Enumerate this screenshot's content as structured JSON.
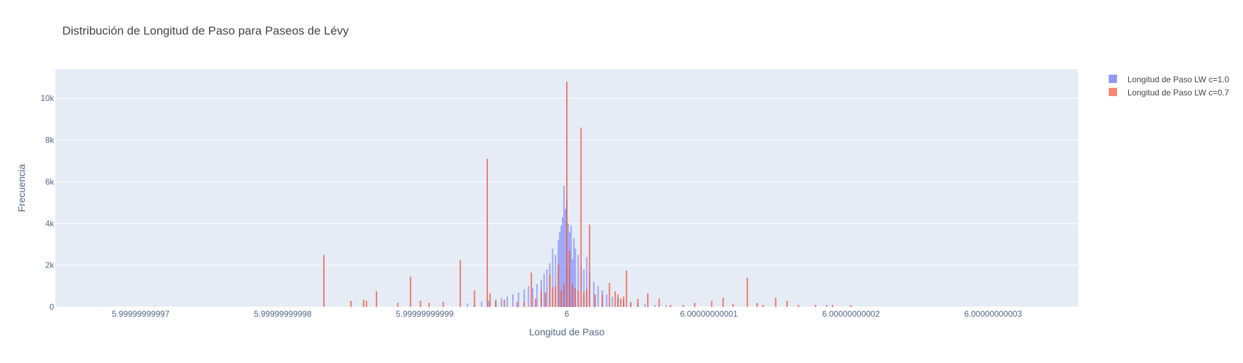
{
  "chart_data": {
    "type": "histogram",
    "title": "Distribución de Longitud de Paso para Paseos de Lévy",
    "xlabel": "Longitud de Paso",
    "ylabel": "Frecuencia",
    "x_ticks": [
      {
        "value": -3,
        "label": "5.99999999997"
      },
      {
        "value": -2,
        "label": "5.99999999998"
      },
      {
        "value": -1,
        "label": "5.99999999999"
      },
      {
        "value": 0,
        "label": "6"
      },
      {
        "value": 1,
        "label": "6.00000000001"
      },
      {
        "value": 2,
        "label": "6.00000000002"
      },
      {
        "value": 3,
        "label": "6.00000000003"
      }
    ],
    "x_unit_note": "x values are offsets from 6 in units of 1e-11",
    "xlim": [
      -3.6,
      3.6
    ],
    "y_ticks": [
      {
        "value": 0,
        "label": "0"
      },
      {
        "value": 2000,
        "label": "2k"
      },
      {
        "value": 4000,
        "label": "4k"
      },
      {
        "value": 6000,
        "label": "6k"
      },
      {
        "value": 8000,
        "label": "8k"
      },
      {
        "value": 10000,
        "label": "10k"
      }
    ],
    "ylim": [
      0,
      11400
    ],
    "grid": true,
    "legend_position": "top-right",
    "colors": {
      "plot_bg": "#E5ECF6",
      "grid": "#ffffff",
      "series1": "#636EFA",
      "series2": "#EF553B"
    },
    "series": [
      {
        "name": "Longitud de Paso LW c=1.0",
        "color": "#636EFA",
        "opacity": 0.55,
        "x": [
          -0.7,
          -0.65,
          -0.6,
          -0.55,
          -0.5,
          -0.46,
          -0.42,
          -0.38,
          -0.34,
          -0.3,
          -0.27,
          -0.24,
          -0.21,
          -0.18,
          -0.16,
          -0.14,
          -0.12,
          -0.1,
          -0.08,
          -0.06,
          -0.05,
          -0.04,
          -0.03,
          -0.02,
          -0.01,
          0.0,
          0.01,
          0.02,
          0.03,
          0.04,
          0.05,
          0.06,
          0.08,
          0.1,
          0.12,
          0.14,
          0.16,
          0.19,
          0.22,
          0.25,
          0.28,
          0.32,
          0.36,
          0.4,
          0.45,
          0.5,
          0.55,
          0.62,
          0.7
        ],
        "y": [
          150,
          200,
          250,
          300,
          350,
          420,
          500,
          600,
          700,
          850,
          1000,
          900,
          1100,
          1300,
          1600,
          1800,
          2100,
          2800,
          2500,
          3200,
          3600,
          3900,
          4300,
          5800,
          4700,
          5200,
          4000,
          3600,
          3900,
          2300,
          3300,
          2800,
          2500,
          2000,
          1800,
          2400,
          1600,
          1200,
          1000,
          800,
          600,
          500,
          400,
          350,
          250,
          200,
          150,
          100,
          80
        ]
      },
      {
        "name": "Longitud de Paso LW c=0.7",
        "color": "#EF553B",
        "opacity": 0.75,
        "x": [
          -3.3,
          -2.9,
          -1.71,
          -1.52,
          -1.43,
          -1.41,
          -1.34,
          -1.19,
          -1.1,
          -1.03,
          -0.97,
          -0.87,
          -0.75,
          -0.65,
          -0.56,
          -0.54,
          -0.5,
          -0.44,
          -0.35,
          -0.3,
          -0.25,
          -0.22,
          -0.18,
          -0.15,
          -0.12,
          -0.1,
          -0.08,
          -0.06,
          -0.04,
          -0.02,
          0.0,
          0.02,
          0.04,
          0.06,
          0.08,
          0.1,
          0.12,
          0.14,
          0.16,
          0.2,
          0.25,
          0.3,
          0.34,
          0.36,
          0.38,
          0.4,
          0.42,
          0.45,
          0.5,
          0.57,
          0.65,
          0.73,
          0.82,
          0.9,
          1.02,
          1.1,
          1.17,
          1.27,
          1.34,
          1.38,
          1.47,
          1.55,
          1.63,
          1.75,
          1.83,
          1.87,
          2.0
        ],
        "y": [
          10,
          10,
          2500,
          300,
          350,
          300,
          750,
          200,
          1450,
          300,
          200,
          250,
          2250,
          800,
          7100,
          650,
          300,
          350,
          250,
          250,
          1650,
          400,
          800,
          700,
          1550,
          950,
          1000,
          2100,
          800,
          1100,
          10800,
          2700,
          1100,
          900,
          800,
          8600,
          700,
          850,
          3950,
          600,
          600,
          1150,
          750,
          600,
          400,
          500,
          1750,
          200,
          400,
          650,
          400,
          100,
          100,
          200,
          300,
          450,
          150,
          1400,
          200,
          100,
          450,
          300,
          100,
          100,
          100,
          100,
          100
        ]
      }
    ]
  }
}
